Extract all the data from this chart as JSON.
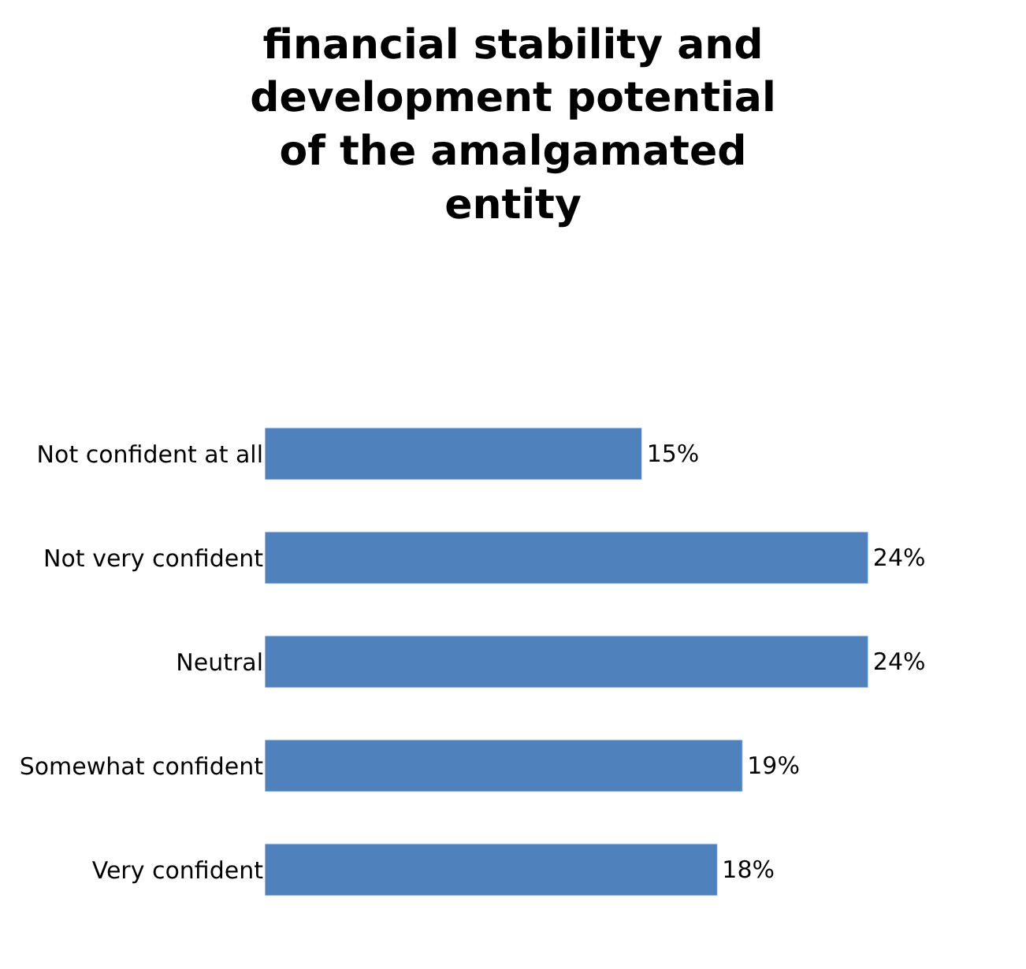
{
  "chart_data": {
    "type": "bar",
    "orientation": "horizontal",
    "title": "financial stability and development potential of the amalgamated entity",
    "categories": [
      "Not confident at all",
      "Not very confident",
      "Neutral",
      "Somewhat confident",
      "Very confident"
    ],
    "values": [
      15,
      24,
      24,
      19,
      18
    ],
    "value_labels": [
      "15%",
      "24%",
      "24%",
      "19%",
      "18%"
    ],
    "color": "#4f81bd",
    "legend": false
  }
}
